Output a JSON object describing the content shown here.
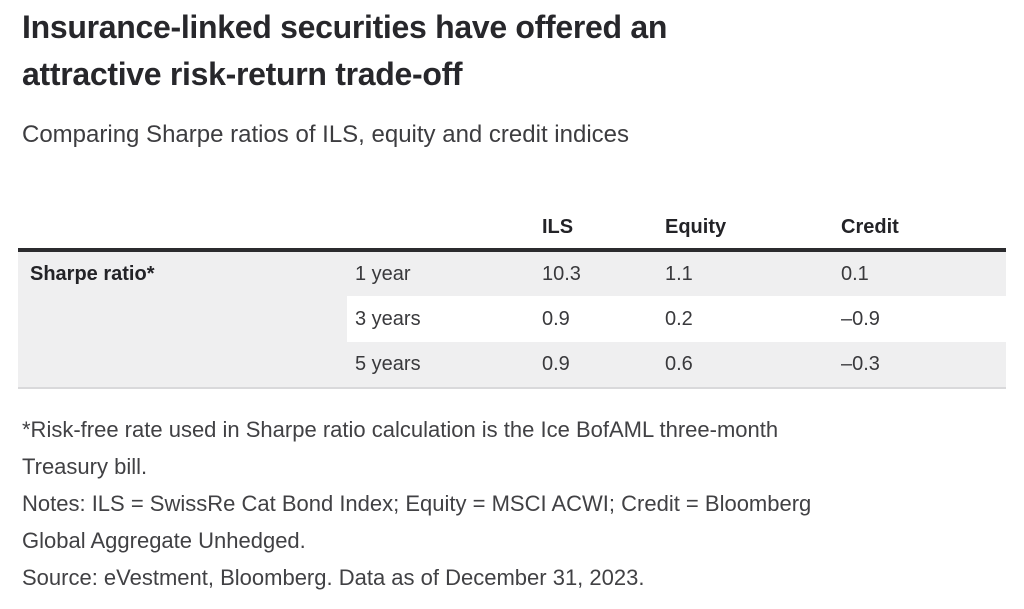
{
  "header": {
    "title_lines": [
      "Insurance-linked securities have offered an",
      "attractive risk-return trade-off"
    ],
    "title_full": "Insurance-linked securities have offered an attractive risk-return trade-off",
    "subtitle": "Comparing Sharpe ratios of ILS, equity and credit indices"
  },
  "table": {
    "col_headers": [
      "",
      "",
      "ILS",
      "Equity",
      "Credit"
    ],
    "row_group_label": "Sharpe ratio*",
    "rows": [
      {
        "period": "1 year",
        "ils": "10.3",
        "equity": "1.1",
        "credit": "0.1"
      },
      {
        "period": "3 years",
        "ils": "0.9",
        "equity": "0.2",
        "credit": "–0.9"
      },
      {
        "period": "5 years",
        "ils": "0.9",
        "equity": "0.6",
        "credit": "–0.3"
      }
    ]
  },
  "footnotes": {
    "risk_free_lines": [
      "*Risk-free rate used in Sharpe ratio calculation is the Ice BofAML three-month",
      "Treasury bill."
    ],
    "notes_lines": [
      "Notes: ILS = SwissRe Cat Bond Index; Equity = MSCI ACWI; Credit = Bloomberg",
      "Global Aggregate Unhedged."
    ],
    "source": "Source: eVestment, Bloomberg. Data as of December 31, 2023."
  },
  "colors": {
    "title_text": "#27272b",
    "body_text": "#414144",
    "cell_text": "#39393c",
    "row_shade": "#efeff0",
    "table_top_border": "#2b2b2e",
    "table_bottom_border": "#d9d9db",
    "background": "#ffffff"
  },
  "chart_data": {
    "type": "table",
    "title": "Insurance-linked securities have offered an attractive risk-return trade-off",
    "subtitle": "Comparing Sharpe ratios of ILS, equity and credit indices",
    "row_label": "Sharpe ratio*",
    "categories": [
      "1 year",
      "3 years",
      "5 years"
    ],
    "series": [
      {
        "name": "ILS",
        "values": [
          10.3,
          0.9,
          0.9
        ]
      },
      {
        "name": "Equity",
        "values": [
          1.1,
          0.2,
          0.6
        ]
      },
      {
        "name": "Credit",
        "values": [
          0.1,
          -0.9,
          -0.3
        ]
      }
    ],
    "notes": "*Risk-free rate used in Sharpe ratio calculation is the Ice BofAML three-month Treasury bill. Notes: ILS = SwissRe Cat Bond Index; Equity = MSCI ACWI; Credit = Bloomberg Global Aggregate Unhedged.",
    "source": "Source: eVestment, Bloomberg. Data as of December 31, 2023."
  }
}
